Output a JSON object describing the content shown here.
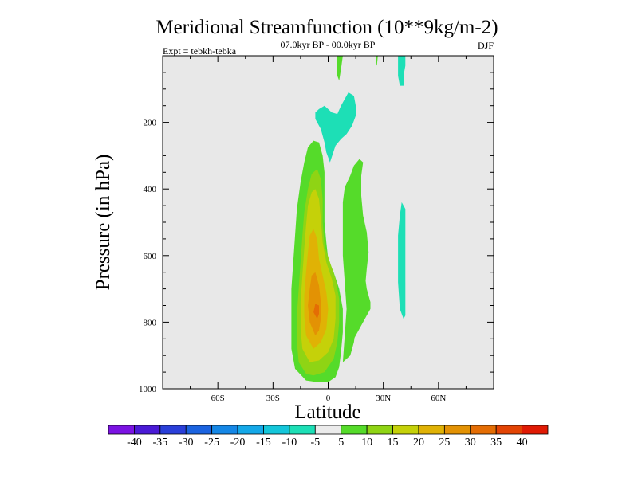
{
  "chart_data": {
    "type": "contour",
    "title": "Meridional Streamfunction (10**9kg/m-2)",
    "subtitle": "07.0kyr BP - 00.0kyr BP",
    "left_label": "Expt = tebkh-tebka",
    "right_label": "DJF",
    "xlabel": "Latitude",
    "ylabel": "Pressure (in hPa)",
    "xlim": [
      -90,
      90
    ],
    "ylim": [
      1000,
      0
    ],
    "x_ticks": [
      {
        "value": -60,
        "label": "60S"
      },
      {
        "value": -30,
        "label": "30S"
      },
      {
        "value": 0,
        "label": "0"
      },
      {
        "value": 30,
        "label": "30N"
      },
      {
        "value": 60,
        "label": "60N"
      }
    ],
    "y_ticks": [
      {
        "value": 200,
        "label": "200"
      },
      {
        "value": 400,
        "label": "400"
      },
      {
        "value": 600,
        "label": "600"
      },
      {
        "value": 800,
        "label": "800"
      },
      {
        "value": 1000,
        "label": "1000"
      }
    ],
    "background": "#e8e8e8",
    "colorbar": {
      "labels": [
        "-40",
        "-35",
        "-30",
        "-25",
        "-20",
        "-15",
        "-10",
        "-5",
        "5",
        "10",
        "15",
        "20",
        "25",
        "30",
        "35",
        "40"
      ],
      "colors": [
        "#7b13e3",
        "#4a1ad6",
        "#2a3fd9",
        "#1b63e0",
        "#1587e6",
        "#14a8e8",
        "#14c6da",
        "#1ddfb6",
        "#ebebeb",
        "#55db2a",
        "#8fd414",
        "#c5d109",
        "#e0b205",
        "#e39204",
        "#e46d04",
        "#e34404",
        "#e01a04"
      ]
    },
    "contours": [
      {
        "name": "pos-5-15-main",
        "level": 5,
        "color": "#55db2a",
        "points": [
          [
            -12,
            975
          ],
          [
            -18,
            940
          ],
          [
            -20,
            880
          ],
          [
            -20,
            790
          ],
          [
            -20,
            700
          ],
          [
            -19,
            620
          ],
          [
            -18,
            540
          ],
          [
            -17,
            460
          ],
          [
            -15,
            380
          ],
          [
            -13,
            320
          ],
          [
            -11,
            275
          ],
          [
            -8,
            255
          ],
          [
            -5,
            260
          ],
          [
            -3,
            300
          ],
          [
            -2,
            350
          ],
          [
            -2,
            420
          ],
          [
            -2,
            500
          ],
          [
            -1,
            560
          ],
          [
            0,
            610
          ],
          [
            3,
            650
          ],
          [
            6,
            700
          ],
          [
            8,
            760
          ],
          [
            8,
            830
          ],
          [
            7,
            890
          ],
          [
            6,
            935
          ],
          [
            4,
            965
          ],
          [
            0,
            980
          ],
          [
            -6,
            980
          ]
        ]
      },
      {
        "name": "pos-15-25-core",
        "level": 15,
        "color": "#8fd414",
        "points": [
          [
            -12,
            955
          ],
          [
            -16,
            920
          ],
          [
            -17,
            860
          ],
          [
            -17,
            780
          ],
          [
            -16,
            700
          ],
          [
            -15,
            620
          ],
          [
            -14,
            540
          ],
          [
            -13,
            470
          ],
          [
            -11,
            400
          ],
          [
            -9,
            355
          ],
          [
            -6,
            340
          ],
          [
            -4,
            370
          ],
          [
            -3,
            430
          ],
          [
            -3,
            500
          ],
          [
            -2,
            570
          ],
          [
            1,
            620
          ],
          [
            4,
            670
          ],
          [
            6,
            730
          ],
          [
            6,
            800
          ],
          [
            5,
            860
          ],
          [
            3,
            910
          ],
          [
            -2,
            950
          ],
          [
            -8,
            960
          ]
        ]
      },
      {
        "name": "pos-25-35-core",
        "level": 20,
        "color": "#c5d109",
        "points": [
          [
            -10,
            920
          ],
          [
            -14,
            880
          ],
          [
            -15,
            820
          ],
          [
            -15,
            740
          ],
          [
            -14,
            660
          ],
          [
            -13,
            580
          ],
          [
            -12,
            510
          ],
          [
            -11,
            450
          ],
          [
            -9,
            410
          ],
          [
            -7,
            400
          ],
          [
            -5,
            430
          ],
          [
            -4,
            490
          ],
          [
            -3,
            560
          ],
          [
            -1,
            620
          ],
          [
            2,
            670
          ],
          [
            4,
            720
          ],
          [
            4,
            790
          ],
          [
            3,
            850
          ],
          [
            0,
            890
          ],
          [
            -5,
            915
          ]
        ]
      },
      {
        "name": "pos-35-45-core",
        "level": 25,
        "color": "#e0b205",
        "points": [
          [
            -8,
            880
          ],
          [
            -12,
            840
          ],
          [
            -13,
            780
          ],
          [
            -13,
            720
          ],
          [
            -12,
            650
          ],
          [
            -11,
            590
          ],
          [
            -10,
            540
          ],
          [
            -8,
            520
          ],
          [
            -6,
            550
          ],
          [
            -5,
            610
          ],
          [
            -3,
            660
          ],
          [
            -1,
            710
          ],
          [
            0,
            760
          ],
          [
            -1,
            820
          ],
          [
            -4,
            860
          ]
        ]
      },
      {
        "name": "pos-45-55-core",
        "level": 30,
        "color": "#e39204",
        "points": [
          [
            -7,
            840
          ],
          [
            -10,
            800
          ],
          [
            -11,
            750
          ],
          [
            -10,
            700
          ],
          [
            -9,
            660
          ],
          [
            -7,
            650
          ],
          [
            -5,
            690
          ],
          [
            -4,
            740
          ],
          [
            -4,
            790
          ],
          [
            -5,
            825
          ]
        ]
      },
      {
        "name": "pos-55-max",
        "level": 35,
        "color": "#e46d04",
        "points": [
          [
            -6,
            790
          ],
          [
            -8,
            770
          ],
          [
            -7,
            745
          ],
          [
            -5,
            750
          ],
          [
            -5,
            775
          ]
        ]
      },
      {
        "name": "pos-nh-arm",
        "level": 5,
        "color": "#55db2a",
        "points": [
          [
            8,
            920
          ],
          [
            12,
            900
          ],
          [
            14,
            860
          ],
          [
            15,
            820
          ],
          [
            17,
            780
          ],
          [
            19,
            750
          ],
          [
            20,
            700
          ],
          [
            21,
            640
          ],
          [
            22,
            590
          ],
          [
            21,
            530
          ],
          [
            19,
            480
          ],
          [
            18,
            420
          ],
          [
            18,
            360
          ],
          [
            19,
            320
          ],
          [
            17,
            310
          ],
          [
            14,
            330
          ],
          [
            12,
            360
          ],
          [
            9,
            395
          ],
          [
            8,
            440
          ],
          [
            8,
            520
          ],
          [
            8,
            600
          ],
          [
            9,
            680
          ],
          [
            10,
            760
          ],
          [
            9,
            840
          ]
        ]
      },
      {
        "name": "pos-nh-arm-inner",
        "level": 10,
        "color": "#55db2a",
        "points": [
          [
            13,
            860
          ],
          [
            17,
            820
          ],
          [
            21,
            780
          ],
          [
            23,
            760
          ],
          [
            23,
            740
          ],
          [
            21,
            700
          ],
          [
            20,
            660
          ]
        ]
      },
      {
        "name": "neg-upper-tropics",
        "level": -5,
        "color": "#1ddfb6",
        "points": [
          [
            -5,
            160
          ],
          [
            -2,
            150
          ],
          [
            2,
            170
          ],
          [
            5,
            175
          ],
          [
            7,
            150
          ],
          [
            9,
            130
          ],
          [
            11,
            110
          ],
          [
            14,
            120
          ],
          [
            15,
            150
          ],
          [
            15,
            180
          ],
          [
            13,
            210
          ],
          [
            10,
            235
          ],
          [
            7,
            250
          ],
          [
            4,
            270
          ],
          [
            1,
            320
          ],
          [
            -1,
            290
          ],
          [
            -2,
            260
          ],
          [
            -4,
            220
          ],
          [
            -7,
            190
          ],
          [
            -7,
            170
          ]
        ]
      },
      {
        "name": "neg-40n-column",
        "level": -5,
        "color": "#1ddfb6",
        "points": [
          [
            40,
            440
          ],
          [
            42,
            460
          ],
          [
            42,
            540
          ],
          [
            42,
            620
          ],
          [
            42,
            700
          ],
          [
            42,
            780
          ],
          [
            41,
            790
          ],
          [
            39,
            760
          ],
          [
            38,
            680
          ],
          [
            38,
            600
          ],
          [
            38,
            540
          ],
          [
            39,
            480
          ]
        ]
      },
      {
        "name": "neg-40n-top",
        "level": -5,
        "color": "#1ddfb6",
        "points": [
          [
            38,
            0
          ],
          [
            42,
            0
          ],
          [
            42,
            30
          ],
          [
            41,
            60
          ],
          [
            41,
            90
          ],
          [
            39,
            90
          ],
          [
            38,
            60
          ]
        ]
      },
      {
        "name": "pos-top-left",
        "level": 5,
        "color": "#55db2a",
        "points": [
          [
            5,
            0
          ],
          [
            8,
            0
          ],
          [
            7,
            40
          ],
          [
            6,
            75
          ],
          [
            5,
            60
          ]
        ]
      },
      {
        "name": "pos-top-mid",
        "level": 5,
        "color": "#55db2a",
        "points": [
          [
            26,
            0
          ],
          [
            27,
            0
          ],
          [
            26.5,
            30
          ],
          [
            26,
            20
          ]
        ]
      }
    ]
  }
}
